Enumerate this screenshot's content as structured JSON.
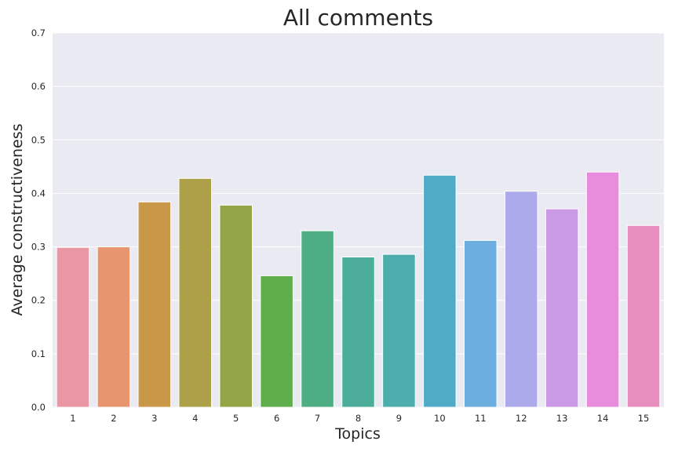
{
  "chart_data": {
    "type": "bar",
    "title": "All comments",
    "xlabel": "Topics",
    "ylabel": "Average constructiveness",
    "categories": [
      "1",
      "2",
      "3",
      "4",
      "5",
      "6",
      "7",
      "8",
      "9",
      "10",
      "11",
      "12",
      "13",
      "14",
      "15"
    ],
    "values": [
      0.299,
      0.3,
      0.384,
      0.428,
      0.378,
      0.246,
      0.33,
      0.281,
      0.286,
      0.434,
      0.312,
      0.404,
      0.371,
      0.44,
      0.34
    ],
    "ylim": [
      0.0,
      0.7
    ],
    "yticks": [
      "0.0",
      "0.1",
      "0.2",
      "0.3",
      "0.4",
      "0.5",
      "0.6",
      "0.7"
    ],
    "grid": true,
    "colors": [
      "#ea96a3",
      "#e6956f",
      "#c99748",
      "#aca048",
      "#94a548",
      "#5eae4b",
      "#4cae82",
      "#4bad9a",
      "#4dacac",
      "#4fabc6",
      "#6badde",
      "#acaaea",
      "#cb9ae6",
      "#e78ddc",
      "#e98fbf"
    ],
    "background": "#eaeaf2"
  }
}
